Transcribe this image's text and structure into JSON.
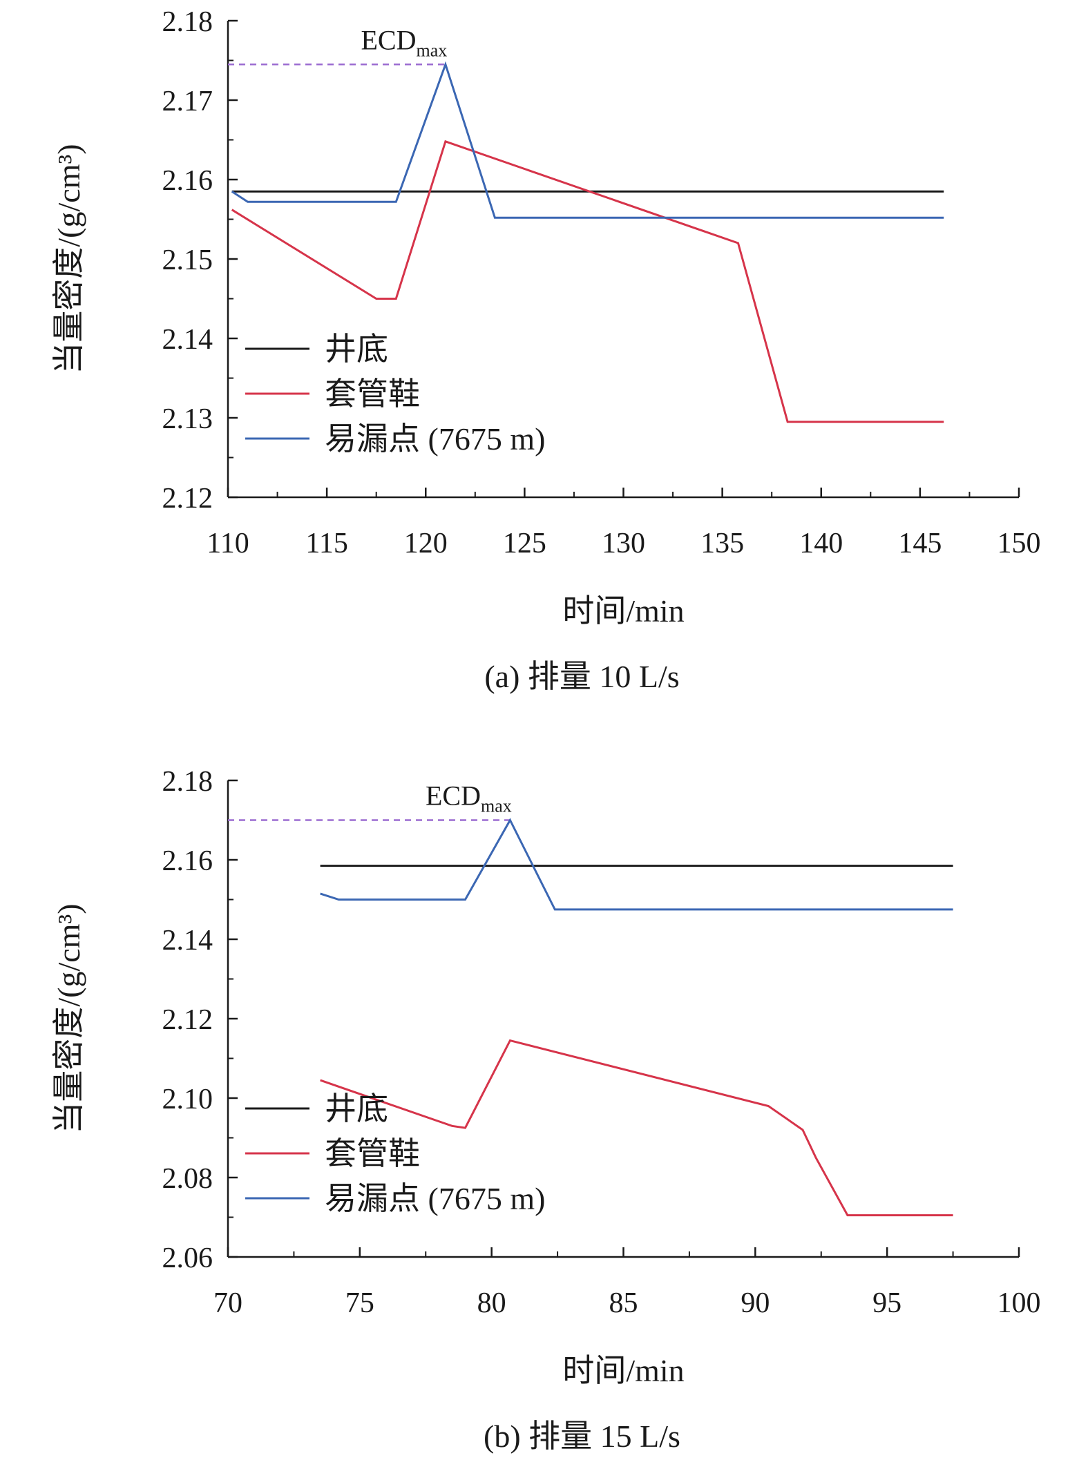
{
  "chart_data": [
    {
      "type": "line",
      "caption": "(a) 排量 10 L/s",
      "xlabel": "时间/min",
      "ylabel": "当量密度/(g/cm³)",
      "xlim": [
        110,
        150
      ],
      "ylim": [
        2.12,
        2.18
      ],
      "xticks": [
        "110",
        "115",
        "120",
        "125",
        "130",
        "135",
        "140",
        "145",
        "150"
      ],
      "yticks": [
        "2.12",
        "2.13",
        "2.14",
        "2.15",
        "2.16",
        "2.17",
        "2.18"
      ],
      "grid": false,
      "legend_position": "bottom-left",
      "annotation": {
        "text": "ECD",
        "sub": "max",
        "x": 121,
        "y": 2.1745
      },
      "series": [
        {
          "name": "井底",
          "color": "#1a1a1a",
          "x": [
            110.2,
            146.2
          ],
          "y": [
            2.1585,
            2.1585
          ]
        },
        {
          "name": "套管鞋",
          "color": "#d6344a",
          "x": [
            110.2,
            117.5,
            118.5,
            121.0,
            135.8,
            138.3,
            146.2
          ],
          "y": [
            2.1562,
            2.145,
            2.145,
            2.1648,
            2.152,
            2.1295,
            2.1295
          ]
        },
        {
          "name": "易漏点 (7675 m)",
          "color": "#3b67b3",
          "x": [
            110.2,
            111.0,
            118.5,
            121.0,
            123.5,
            146.2
          ],
          "y": [
            2.1585,
            2.1572,
            2.1572,
            2.1745,
            2.1552,
            2.1552
          ]
        }
      ]
    },
    {
      "type": "line",
      "caption": "(b) 排量 15 L/s",
      "xlabel": "时间/min",
      "ylabel": "当量密度/(g/cm³)",
      "xlim": [
        70,
        100
      ],
      "ylim": [
        2.06,
        2.18
      ],
      "xticks": [
        "70",
        "75",
        "80",
        "85",
        "90",
        "95",
        "100"
      ],
      "yticks": [
        "2.06",
        "2.08",
        "2.10",
        "2.12",
        "2.14",
        "2.16",
        "2.18"
      ],
      "grid": false,
      "legend_position": "bottom-left",
      "annotation": {
        "text": "ECD",
        "sub": "max",
        "x": 80.7,
        "y": 2.17
      },
      "series": [
        {
          "name": "井底",
          "color": "#1a1a1a",
          "x": [
            73.5,
            97.5
          ],
          "y": [
            2.1585,
            2.1585
          ]
        },
        {
          "name": "套管鞋",
          "color": "#d6344a",
          "x": [
            73.5,
            78.5,
            79.0,
            80.7,
            90.5,
            91.8,
            92.3,
            93.5,
            97.5
          ],
          "y": [
            2.1045,
            2.093,
            2.0925,
            2.1145,
            2.098,
            2.092,
            2.085,
            2.0705,
            2.0705
          ]
        },
        {
          "name": "易漏点 (7675 m)",
          "color": "#3b67b3",
          "x": [
            73.5,
            74.2,
            79.0,
            80.7,
            82.4,
            97.5
          ],
          "y": [
            2.1515,
            2.15,
            2.15,
            2.17,
            2.1475,
            2.1475
          ]
        }
      ]
    }
  ],
  "colors": {
    "axis": "#1a1a1a",
    "annotation_line": "#9b6bd0"
  }
}
